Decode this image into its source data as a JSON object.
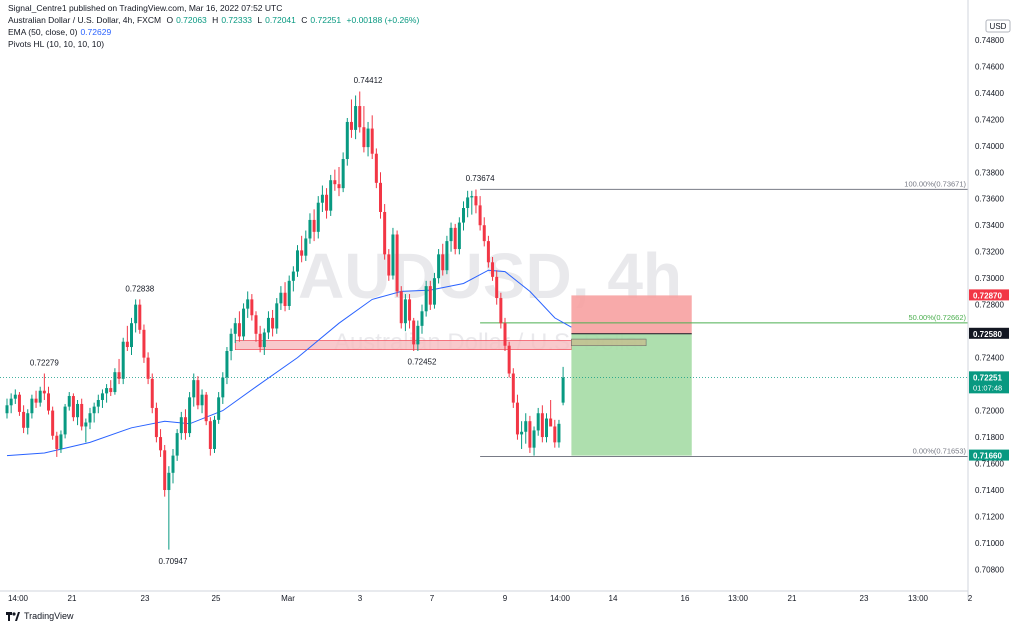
{
  "header": {
    "publish_line": "Signal_Centre1 published on TradingView.com, Mar 16, 2022 07:52 UTC",
    "symbol": "Australian Dollar / U.S. Dollar, 4h, FXCM",
    "o_label": "O",
    "o_value": "0.72063",
    "h_label": "H",
    "h_value": "0.72333",
    "l_label": "L",
    "l_value": "0.72041",
    "c_label": "C",
    "c_value": "0.72251",
    "change": "+0.00188 (+0.26%)",
    "ema_label": "EMA (50, close, 0)",
    "ema_value": "0.72629",
    "pivots_label": "Pivots HL (10, 10, 10, 10)"
  },
  "watermark": {
    "symbol": "AUDUSD, 4h",
    "name": "Australian Dollar / U.S. Dollar"
  },
  "currency": "USD",
  "footer": {
    "brand": "TradingView"
  },
  "colors": {
    "up": "#089981",
    "down": "#f23645",
    "ema": "#2962ff",
    "fib": "#787b86",
    "fib50": "#4caf50",
    "stop_zone": "#f7a1a1",
    "target_zone": "#a5dca5",
    "resistance": "#f6bcbf"
  },
  "chart_data": {
    "type": "candlestick",
    "ylim": [
      0.7066,
      0.7495
    ],
    "y_ticks": [
      "0.74800",
      "0.74600",
      "0.74400",
      "0.74200",
      "0.74000",
      "0.73800",
      "0.73600",
      "0.73400",
      "0.73200",
      "0.73000",
      "0.72800",
      "0.72600",
      "0.72400",
      "0.72200",
      "0.72000",
      "0.71800",
      "0.71600",
      "0.71400",
      "0.71200",
      "0.71000",
      "0.70800"
    ],
    "x_ticks": [
      "14:00",
      "21",
      "23",
      "25",
      "Mar",
      "3",
      "7",
      "9",
      "14:00",
      "14",
      "16",
      "13:00",
      "21",
      "23",
      "13:00",
      "2"
    ],
    "price_labels": [
      {
        "text": "0.72870",
        "price": 0.7287,
        "color": "#f23645"
      },
      {
        "text": "0.72580",
        "price": 0.7258,
        "color": "#131722"
      },
      {
        "text": "0.72251",
        "price": 0.72251,
        "color": "#089981",
        "sub": "01:07:48"
      },
      {
        "text": "0.71660",
        "price": 0.7166,
        "color": "#089981"
      }
    ],
    "pivot_labels": [
      {
        "text": "0.72279",
        "price": 0.72279,
        "pos": "high",
        "bar": 9
      },
      {
        "text": "0.72838",
        "price": 0.72838,
        "pos": "high",
        "bar": 32
      },
      {
        "text": "0.70947",
        "price": 0.70947,
        "pos": "low",
        "bar": 40
      },
      {
        "text": "0.74412",
        "price": 0.74412,
        "pos": "high",
        "bar": 87
      },
      {
        "text": "0.72452",
        "price": 0.72452,
        "pos": "low",
        "bar": 100
      },
      {
        "text": "0.73674",
        "price": 0.73674,
        "pos": "high",
        "bar": 114
      }
    ],
    "fib_levels": [
      {
        "text": "100.00%(0.73671)",
        "price": 0.73671
      },
      {
        "text": "50.00%(0.72662)",
        "price": 0.72662
      },
      {
        "text": "0.00%(0.71653)",
        "price": 0.71653
      }
    ],
    "candles": [
      [
        0.7198,
        0.7209,
        0.7194,
        0.7204
      ],
      [
        0.7204,
        0.7213,
        0.7198,
        0.7209
      ],
      [
        0.7209,
        0.7216,
        0.7205,
        0.7212
      ],
      [
        0.7212,
        0.7214,
        0.7196,
        0.7199
      ],
      [
        0.7199,
        0.7204,
        0.7183,
        0.7187
      ],
      [
        0.7187,
        0.7201,
        0.7182,
        0.7198
      ],
      [
        0.7198,
        0.7212,
        0.7194,
        0.7209
      ],
      [
        0.7209,
        0.7215,
        0.7202,
        0.7206
      ],
      [
        0.7206,
        0.7218,
        0.7203,
        0.7215
      ],
      [
        0.7215,
        0.7228,
        0.7208,
        0.7213
      ],
      [
        0.7213,
        0.7218,
        0.7197,
        0.72
      ],
      [
        0.72,
        0.7203,
        0.7178,
        0.7181
      ],
      [
        0.7181,
        0.7184,
        0.7165,
        0.7171
      ],
      [
        0.7171,
        0.7185,
        0.7168,
        0.7182
      ],
      [
        0.7182,
        0.7205,
        0.7179,
        0.7203
      ],
      [
        0.7203,
        0.7214,
        0.72,
        0.7211
      ],
      [
        0.7211,
        0.7213,
        0.7192,
        0.7195
      ],
      [
        0.7195,
        0.7208,
        0.7189,
        0.7205
      ],
      [
        0.7205,
        0.7209,
        0.7185,
        0.7188
      ],
      [
        0.7188,
        0.7194,
        0.7176,
        0.7191
      ],
      [
        0.7191,
        0.7202,
        0.7186,
        0.7198
      ],
      [
        0.7198,
        0.7206,
        0.7191,
        0.7203
      ],
      [
        0.7203,
        0.7212,
        0.7198,
        0.7208
      ],
      [
        0.7208,
        0.7216,
        0.7202,
        0.7213
      ],
      [
        0.7213,
        0.722,
        0.7206,
        0.7217
      ],
      [
        0.7217,
        0.7223,
        0.7211,
        0.7214
      ],
      [
        0.7214,
        0.7232,
        0.7212,
        0.7229
      ],
      [
        0.7229,
        0.7239,
        0.722,
        0.7224
      ],
      [
        0.7224,
        0.7255,
        0.722,
        0.7252
      ],
      [
        0.7252,
        0.7264,
        0.7245,
        0.7248
      ],
      [
        0.7248,
        0.727,
        0.7242,
        0.7266
      ],
      [
        0.7266,
        0.7284,
        0.7259,
        0.728
      ],
      [
        0.728,
        0.7284,
        0.7258,
        0.7261
      ],
      [
        0.7261,
        0.7265,
        0.7236,
        0.724
      ],
      [
        0.724,
        0.7244,
        0.722,
        0.7224
      ],
      [
        0.7224,
        0.7228,
        0.7198,
        0.7202
      ],
      [
        0.7202,
        0.7206,
        0.7176,
        0.718
      ],
      [
        0.718,
        0.7186,
        0.7165,
        0.717
      ],
      [
        0.717,
        0.7174,
        0.7135,
        0.714
      ],
      [
        0.714,
        0.7158,
        0.7095,
        0.7153
      ],
      [
        0.7153,
        0.7171,
        0.7145,
        0.7166
      ],
      [
        0.7166,
        0.7186,
        0.7162,
        0.7183
      ],
      [
        0.7183,
        0.7199,
        0.7178,
        0.7195
      ],
      [
        0.7195,
        0.7201,
        0.7178,
        0.7183
      ],
      [
        0.7183,
        0.7214,
        0.718,
        0.721
      ],
      [
        0.721,
        0.7228,
        0.7203,
        0.7223
      ],
      [
        0.7223,
        0.7226,
        0.7201,
        0.7204
      ],
      [
        0.7204,
        0.7216,
        0.7198,
        0.7212
      ],
      [
        0.7212,
        0.7214,
        0.7189,
        0.7192
      ],
      [
        0.7192,
        0.7195,
        0.7166,
        0.7171
      ],
      [
        0.7171,
        0.7196,
        0.7168,
        0.7193
      ],
      [
        0.7193,
        0.7214,
        0.719,
        0.721
      ],
      [
        0.721,
        0.7229,
        0.7205,
        0.7225
      ],
      [
        0.7225,
        0.7248,
        0.722,
        0.7245
      ],
      [
        0.7245,
        0.7262,
        0.7238,
        0.7258
      ],
      [
        0.7258,
        0.727,
        0.7251,
        0.7266
      ],
      [
        0.7266,
        0.7275,
        0.7252,
        0.7256
      ],
      [
        0.7256,
        0.7281,
        0.7253,
        0.7277
      ],
      [
        0.7277,
        0.729,
        0.727,
        0.7284
      ],
      [
        0.7284,
        0.7288,
        0.7268,
        0.7272
      ],
      [
        0.7272,
        0.7275,
        0.7252,
        0.7258
      ],
      [
        0.7258,
        0.7264,
        0.7244,
        0.7248
      ],
      [
        0.7248,
        0.7262,
        0.7242,
        0.7259
      ],
      [
        0.7259,
        0.7275,
        0.7254,
        0.727
      ],
      [
        0.727,
        0.7276,
        0.7256,
        0.7262
      ],
      [
        0.7262,
        0.7285,
        0.7258,
        0.7281
      ],
      [
        0.7281,
        0.7294,
        0.7276,
        0.7289
      ],
      [
        0.7289,
        0.7297,
        0.7275,
        0.7279
      ],
      [
        0.7279,
        0.7302,
        0.7276,
        0.7298
      ],
      [
        0.7298,
        0.7309,
        0.729,
        0.7305
      ],
      [
        0.7305,
        0.7325,
        0.7301,
        0.7321
      ],
      [
        0.7321,
        0.7332,
        0.7312,
        0.7317
      ],
      [
        0.7317,
        0.7336,
        0.7313,
        0.733
      ],
      [
        0.733,
        0.7349,
        0.7326,
        0.7344
      ],
      [
        0.7344,
        0.7352,
        0.7328,
        0.7335
      ],
      [
        0.7335,
        0.7362,
        0.733,
        0.7357
      ],
      [
        0.7357,
        0.737,
        0.735,
        0.7363
      ],
      [
        0.7363,
        0.7368,
        0.7345,
        0.7351
      ],
      [
        0.7351,
        0.7378,
        0.7347,
        0.7374
      ],
      [
        0.7374,
        0.7382,
        0.7366,
        0.7371
      ],
      [
        0.7371,
        0.7384,
        0.7362,
        0.7368
      ],
      [
        0.7368,
        0.7395,
        0.7365,
        0.739
      ],
      [
        0.739,
        0.7421,
        0.7385,
        0.7418
      ],
      [
        0.7418,
        0.7435,
        0.7406,
        0.7412
      ],
      [
        0.7412,
        0.7438,
        0.7405,
        0.743
      ],
      [
        0.743,
        0.7441,
        0.741,
        0.7414
      ],
      [
        0.7414,
        0.743,
        0.7395,
        0.7399
      ],
      [
        0.7399,
        0.7418,
        0.7392,
        0.7413
      ],
      [
        0.7413,
        0.7423,
        0.739,
        0.7394
      ],
      [
        0.7394,
        0.7398,
        0.7368,
        0.7372
      ],
      [
        0.7372,
        0.738,
        0.7345,
        0.735
      ],
      [
        0.735,
        0.7356,
        0.7314,
        0.7318
      ],
      [
        0.7318,
        0.7322,
        0.7298,
        0.7302
      ],
      [
        0.7302,
        0.7338,
        0.7299,
        0.7333
      ],
      [
        0.7333,
        0.7336,
        0.7286,
        0.729
      ],
      [
        0.729,
        0.7294,
        0.7262,
        0.7266
      ],
      [
        0.7266,
        0.7288,
        0.726,
        0.7284
      ],
      [
        0.7284,
        0.7288,
        0.7262,
        0.7268
      ],
      [
        0.7268,
        0.727,
        0.7245,
        0.725
      ],
      [
        0.725,
        0.7268,
        0.7245,
        0.7264
      ],
      [
        0.7264,
        0.728,
        0.7258,
        0.7275
      ],
      [
        0.7275,
        0.7298,
        0.7271,
        0.7294
      ],
      [
        0.7294,
        0.7298,
        0.7276,
        0.728
      ],
      [
        0.728,
        0.7304,
        0.7277,
        0.73
      ],
      [
        0.73,
        0.7322,
        0.7296,
        0.7318
      ],
      [
        0.7318,
        0.7326,
        0.7302,
        0.7306
      ],
      [
        0.7306,
        0.7332,
        0.7303,
        0.7328
      ],
      [
        0.7328,
        0.7342,
        0.732,
        0.7338
      ],
      [
        0.7338,
        0.7341,
        0.7318,
        0.7322
      ],
      [
        0.7322,
        0.7346,
        0.7318,
        0.7342
      ],
      [
        0.7342,
        0.7358,
        0.7336,
        0.7353
      ],
      [
        0.7353,
        0.7366,
        0.7346,
        0.7361
      ],
      [
        0.7361,
        0.7366,
        0.7348,
        0.7362
      ],
      [
        0.7362,
        0.7367,
        0.7349,
        0.7355
      ],
      [
        0.7355,
        0.7362,
        0.7336,
        0.734
      ],
      [
        0.734,
        0.7346,
        0.7324,
        0.7328
      ],
      [
        0.7328,
        0.7332,
        0.7308,
        0.7312
      ],
      [
        0.7312,
        0.7316,
        0.7298,
        0.7301
      ],
      [
        0.7301,
        0.7306,
        0.728,
        0.7285
      ],
      [
        0.7285,
        0.7289,
        0.7262,
        0.7266
      ],
      [
        0.7266,
        0.727,
        0.7245,
        0.7249
      ],
      [
        0.7249,
        0.7252,
        0.7225,
        0.7228
      ],
      [
        0.7228,
        0.7232,
        0.7202,
        0.7206
      ],
      [
        0.7206,
        0.7212,
        0.7178,
        0.7182
      ],
      [
        0.7182,
        0.7192,
        0.7171,
        0.7184
      ],
      [
        0.7184,
        0.7198,
        0.7175,
        0.7192
      ],
      [
        0.7192,
        0.7196,
        0.7168,
        0.7172
      ],
      [
        0.7172,
        0.7188,
        0.7166,
        0.7185
      ],
      [
        0.7185,
        0.7202,
        0.7181,
        0.7198
      ],
      [
        0.7198,
        0.7204,
        0.7176,
        0.718
      ],
      [
        0.718,
        0.7198,
        0.7176,
        0.7194
      ],
      [
        0.7194,
        0.7208,
        0.719,
        0.7188
      ],
      [
        0.7188,
        0.7193,
        0.7172,
        0.7176
      ],
      [
        0.7176,
        0.7193,
        0.7172,
        0.719
      ],
      [
        0.7206,
        0.7233,
        0.7204,
        0.7225
      ]
    ],
    "ema": [
      [
        0,
        0.7166
      ],
      [
        9,
        0.7168
      ],
      [
        20,
        0.7176
      ],
      [
        30,
        0.7187
      ],
      [
        38,
        0.7192
      ],
      [
        44,
        0.719
      ],
      [
        52,
        0.72
      ],
      [
        60,
        0.7218
      ],
      [
        70,
        0.724
      ],
      [
        80,
        0.7266
      ],
      [
        88,
        0.7284
      ],
      [
        95,
        0.729
      ],
      [
        102,
        0.7291
      ],
      [
        110,
        0.7296
      ],
      [
        116,
        0.7306
      ],
      [
        120,
        0.7305
      ],
      [
        126,
        0.729
      ],
      [
        132,
        0.727
      ],
      [
        136,
        0.7263
      ]
    ],
    "position": {
      "entry": 0.7258,
      "stop": 0.7287,
      "target": 0.7166,
      "bar_start": 136,
      "bar_end": 165
    },
    "resistance_zone": {
      "top": 0.7253,
      "bottom": 0.7246,
      "bar_start": 55,
      "bar_end": 136
    },
    "entry_box": {
      "top": 0.7254,
      "bottom": 0.7249,
      "bar_start": 136,
      "bar_end": 154
    },
    "fib_bar_start": 114
  }
}
